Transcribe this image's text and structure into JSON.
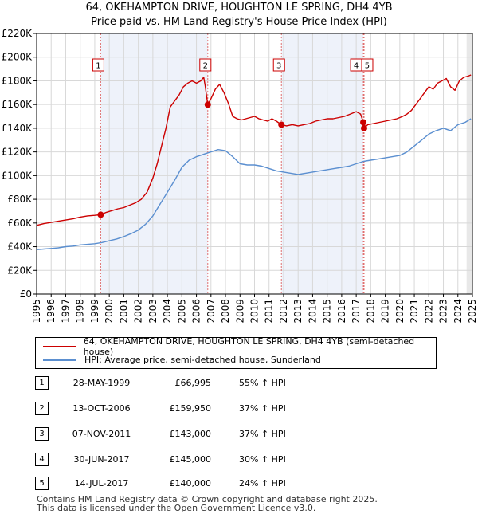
{
  "title_line1": "64, OKEHAMPTON DRIVE, HOUGHTON LE SPRING, DH4 4YB",
  "title_line2": "Price paid vs. HM Land Registry's House Price Index (HPI)",
  "legend": {
    "property_label": "64, OKEHAMPTON DRIVE, HOUGHTON LE SPRING, DH4 4YB (semi-detached house)",
    "hpi_label": "HPI: Average price, semi-detached house, Sunderland"
  },
  "sales": [
    {
      "num": "1",
      "date": "28-MAY-1999",
      "price": "£66,995",
      "hpi": "55% ↑ HPI"
    },
    {
      "num": "2",
      "date": "13-OCT-2006",
      "price": "£159,950",
      "hpi": "37% ↑ HPI"
    },
    {
      "num": "3",
      "date": "07-NOV-2011",
      "price": "£143,000",
      "hpi": "37% ↑ HPI"
    },
    {
      "num": "4",
      "date": "30-JUN-2017",
      "price": "£145,000",
      "hpi": "30% ↑ HPI"
    },
    {
      "num": "5",
      "date": "14-JUL-2017",
      "price": "£140,000",
      "hpi": "24% ↑ HPI"
    }
  ],
  "footer_line1": "Contains HM Land Registry data © Crown copyright and database right 2025.",
  "footer_line2": "This data is licensed under the Open Government Licence v3.0.",
  "colors": {
    "property": "#cc0000",
    "hpi": "#5b8fd0",
    "grid": "#d8d8d8",
    "vline": "#e07070",
    "shade": "#eef2fa",
    "marker_box_border": "#cc0000"
  },
  "chart_data": {
    "type": "line",
    "title": "Price paid vs. HM Land Registry's House Price Index (HPI)",
    "xlabel": "",
    "ylabel": "",
    "xlim": [
      1995,
      2025
    ],
    "ylim": [
      0,
      220000
    ],
    "x_ticks": [
      1995,
      1996,
      1997,
      1998,
      1999,
      2000,
      2001,
      2002,
      2003,
      2004,
      2005,
      2006,
      2007,
      2008,
      2009,
      2010,
      2011,
      2012,
      2013,
      2014,
      2015,
      2016,
      2017,
      2018,
      2019,
      2020,
      2021,
      2022,
      2023,
      2024,
      2025
    ],
    "y_ticks": [
      0,
      20000,
      40000,
      60000,
      80000,
      100000,
      120000,
      140000,
      160000,
      180000,
      200000,
      220000
    ],
    "y_tick_labels": [
      "£0",
      "£20K",
      "£40K",
      "£60K",
      "£80K",
      "£100K",
      "£120K",
      "£140K",
      "£160K",
      "£180K",
      "£200K",
      "£220K"
    ],
    "grid": true,
    "series": [
      {
        "name": "64, OKEHAMPTON DRIVE, HOUGHTON LE SPRING, DH4 4YB (semi-detached house)",
        "x": [
          1995.0,
          1995.5,
          1996.0,
          1996.5,
          1997.0,
          1997.5,
          1998.0,
          1998.5,
          1999.0,
          1999.41,
          1999.8,
          2000.2,
          2000.6,
          2001.0,
          2001.4,
          2001.8,
          2002.2,
          2002.6,
          2003.0,
          2003.3,
          2003.6,
          2003.9,
          2004.2,
          2004.5,
          2004.8,
          2005.1,
          2005.4,
          2005.7,
          2006.0,
          2006.3,
          2006.5,
          2006.6,
          2006.78,
          2007.0,
          2007.3,
          2007.6,
          2007.9,
          2008.2,
          2008.5,
          2008.8,
          2009.1,
          2009.4,
          2009.7,
          2010.0,
          2010.3,
          2010.6,
          2010.9,
          2011.2,
          2011.5,
          2011.85,
          2012.2,
          2012.6,
          2013.0,
          2013.4,
          2013.8,
          2014.2,
          2014.6,
          2015.0,
          2015.4,
          2015.8,
          2016.2,
          2016.6,
          2017.0,
          2017.3,
          2017.49,
          2017.54,
          2017.8,
          2018.2,
          2018.6,
          2019.0,
          2019.4,
          2019.8,
          2020.2,
          2020.5,
          2020.8,
          2021.1,
          2021.4,
          2021.7,
          2022.0,
          2022.3,
          2022.6,
          2022.9,
          2023.2,
          2023.5,
          2023.8,
          2024.1,
          2024.4,
          2024.7,
          2024.9
        ],
        "values": [
          58000,
          59500,
          60500,
          61500,
          62500,
          63500,
          65000,
          66000,
          66500,
          66995,
          69000,
          70500,
          72000,
          73000,
          75000,
          77000,
          80000,
          86000,
          98000,
          110000,
          125000,
          140000,
          158000,
          163000,
          168000,
          175000,
          178000,
          180000,
          178000,
          180000,
          183000,
          176000,
          159950,
          165000,
          173000,
          177000,
          170000,
          161000,
          150000,
          148000,
          147000,
          148000,
          149000,
          150000,
          148000,
          147000,
          146000,
          148000,
          146000,
          143000,
          142000,
          143000,
          142000,
          143000,
          144000,
          146000,
          147000,
          148000,
          148000,
          149000,
          150000,
          152000,
          154000,
          152000,
          145000,
          140000,
          143000,
          144000,
          145000,
          146000,
          147000,
          148000,
          150000,
          152000,
          155000,
          160000,
          165000,
          170000,
          175000,
          173000,
          178000,
          180000,
          182000,
          175000,
          172000,
          180000,
          183000,
          184000,
          185000
        ]
      },
      {
        "name": "HPI: Average price, semi-detached house, Sunderland",
        "x": [
          1995.0,
          1995.5,
          1996.0,
          1996.5,
          1997.0,
          1997.5,
          1998.0,
          1998.5,
          1999.0,
          1999.5,
          2000.0,
          2000.5,
          2001.0,
          2001.5,
          2002.0,
          2002.5,
          2003.0,
          2003.5,
          2004.0,
          2004.5,
          2005.0,
          2005.5,
          2006.0,
          2006.5,
          2007.0,
          2007.5,
          2008.0,
          2008.5,
          2009.0,
          2009.5,
          2010.0,
          2010.5,
          2011.0,
          2011.5,
          2012.0,
          2012.5,
          2013.0,
          2013.5,
          2014.0,
          2014.5,
          2015.0,
          2015.5,
          2016.0,
          2016.5,
          2017.0,
          2017.5,
          2018.0,
          2018.5,
          2019.0,
          2019.5,
          2020.0,
          2020.5,
          2021.0,
          2021.5,
          2022.0,
          2022.5,
          2023.0,
          2023.5,
          2024.0,
          2024.5,
          2024.9
        ],
        "values": [
          37500,
          38000,
          38500,
          39000,
          40000,
          40500,
          41500,
          42000,
          42500,
          43500,
          45000,
          46500,
          48500,
          51000,
          54000,
          59000,
          66000,
          76000,
          86000,
          96000,
          107000,
          113000,
          116000,
          118000,
          120000,
          122000,
          121000,
          116000,
          110000,
          109000,
          109000,
          108000,
          106000,
          104000,
          103000,
          102000,
          101000,
          102000,
          103000,
          104000,
          105000,
          106000,
          107000,
          108000,
          110000,
          112000,
          113000,
          114000,
          115000,
          116000,
          117000,
          120000,
          125000,
          130000,
          135000,
          138000,
          140000,
          138000,
          143000,
          145000,
          148000
        ]
      }
    ],
    "sale_markers": [
      {
        "label": "1",
        "x": 1999.41,
        "value": 66995
      },
      {
        "label": "2",
        "x": 2006.78,
        "value": 159950
      },
      {
        "label": "3",
        "x": 2011.85,
        "value": 143000
      },
      {
        "label": "4",
        "x": 2017.49,
        "value": 145000
      },
      {
        "label": "5",
        "x": 2017.54,
        "value": 140000
      }
    ]
  }
}
